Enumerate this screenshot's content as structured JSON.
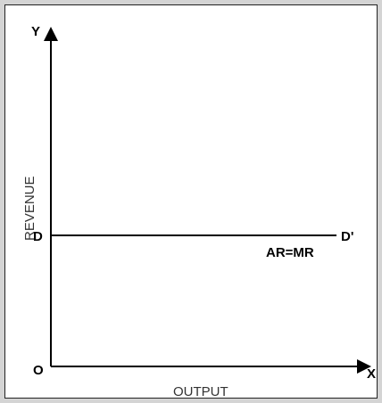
{
  "diagram": {
    "y_axis_label": "Y",
    "x_axis_label": "X",
    "origin_label": "O",
    "vertical_title": "REVENUE",
    "horizontal_title": "OUTPUT",
    "line_start_label": "D",
    "line_end_label": "D'",
    "curve_label": "AR=MR"
  }
}
